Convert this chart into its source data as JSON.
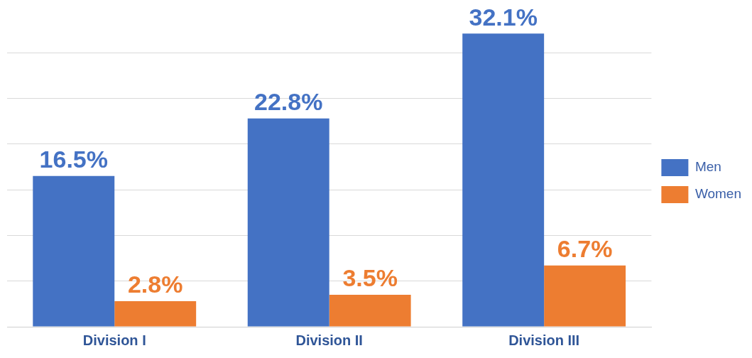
{
  "chart_data": {
    "type": "bar",
    "categories": [
      "Division I",
      "Division II",
      "Division III"
    ],
    "series": [
      {
        "name": "Men",
        "color": "#4472c4",
        "values": [
          16.5,
          22.8,
          32.1
        ],
        "value_labels": [
          "16.5%",
          "22.8%",
          "32.1%"
        ]
      },
      {
        "name": "Women",
        "color": "#ed7d31",
        "values": [
          2.8,
          3.5,
          6.7
        ],
        "value_labels": [
          "2.8%",
          "3.5%",
          "6.7%"
        ]
      }
    ],
    "yticks": [
      {
        "value": 0,
        "label": null
      },
      {
        "value": 5,
        "label": null
      },
      {
        "value": 10,
        "label": null
      },
      {
        "value": 15,
        "label": null
      },
      {
        "value": 20,
        "label": null
      },
      {
        "value": 25,
        "label": null
      },
      {
        "value": 30,
        "label": null
      }
    ],
    "tick_labels": "x",
    "grid": "y",
    "legend": "right"
  }
}
